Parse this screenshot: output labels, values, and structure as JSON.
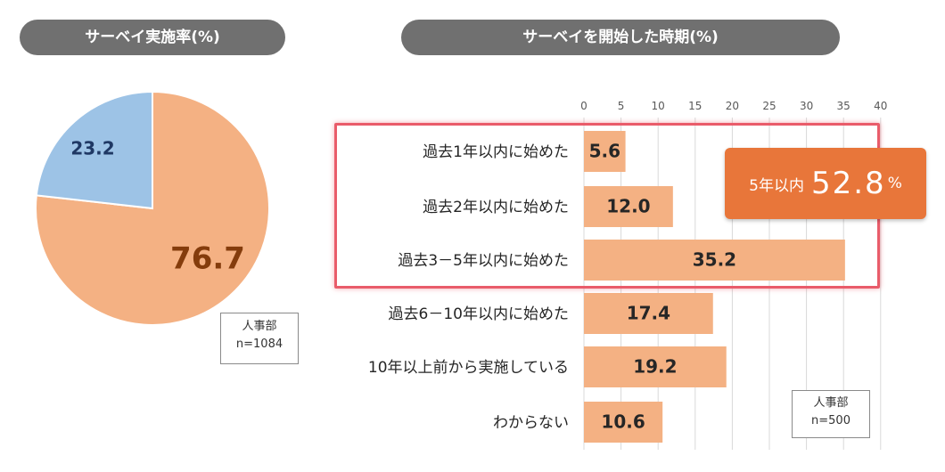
{
  "left_panel": {
    "title": "サーベイ実施率(%)",
    "note_line1": "人事部",
    "note_line2": "n=1084"
  },
  "right_panel": {
    "title": "サーベイを開始した時期(%)",
    "note_line1": "人事部",
    "note_line2": "n=500",
    "callout_label": "5年以内",
    "callout_value": "52.8",
    "callout_unit": "%"
  },
  "colors": {
    "orange": "#f4b183",
    "blue": "#9dc3e6",
    "pill": "#707070",
    "highlight": "#e95c6a",
    "callout": "#e8763a"
  },
  "chart_data": [
    {
      "type": "pie",
      "title": "サーベイ実施率(%)",
      "values": [
        76.7,
        23.2
      ],
      "data_labels": [
        "76.7",
        "23.2"
      ],
      "colors": [
        "#f4b183",
        "#9dc3e6"
      ]
    },
    {
      "type": "bar",
      "orientation": "horizontal",
      "title": "サーベイを開始した時期(%)",
      "categories": [
        "過去1年以内に始めた",
        "過去2年以内に始めた",
        "過去3－5年以内に始めた",
        "過去6－10年以内に始めた",
        "10年以上前から実施している",
        "わからない"
      ],
      "values": [
        5.6,
        12.0,
        35.2,
        17.4,
        19.2,
        10.6
      ],
      "data_labels": [
        "5.6",
        "12.0",
        "35.2",
        "17.4",
        "19.2",
        "10.6"
      ],
      "xlim": [
        0,
        40
      ],
      "xticks": [
        0,
        5,
        10,
        15,
        20,
        25,
        30,
        35,
        40
      ],
      "grid": true,
      "color": "#f4b183"
    }
  ]
}
